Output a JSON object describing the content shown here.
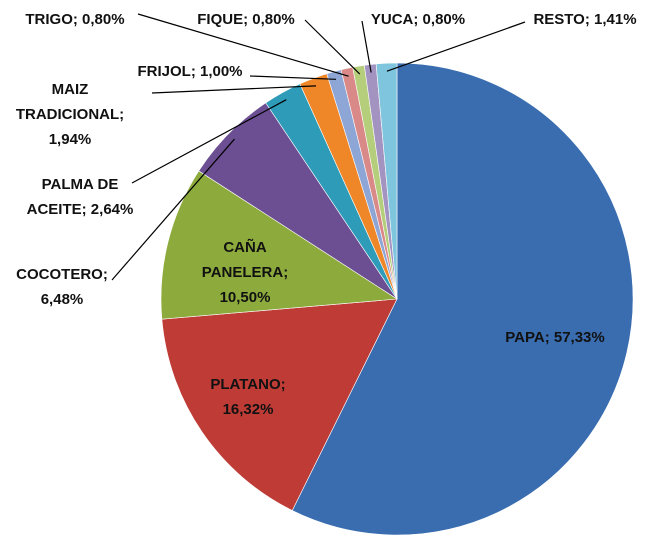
{
  "chart_data": {
    "type": "pie",
    "labels": [
      [
        "PAPA; 57,33%"
      ],
      [
        "PLATANO;",
        "16,32%"
      ],
      [
        "CAÑA",
        "PANELERA;",
        "10,50%"
      ],
      [
        "COCOTERO;",
        "6,48%"
      ],
      [
        "PALMA DE",
        "ACEITE; 2,64%"
      ],
      [
        "MAIZ",
        "TRADICIONAL;",
        "1,94%"
      ],
      [
        "FRIJOL; 1,00%"
      ],
      [
        "TRIGO; 0,80%"
      ],
      [
        "FIQUE; 0,80%"
      ],
      [
        "YUCA; 0,80%"
      ],
      [
        "RESTO; 1,41%"
      ]
    ],
    "values": [
      57.33,
      16.32,
      10.5,
      6.48,
      2.64,
      1.94,
      1.0,
      0.8,
      0.8,
      0.8,
      1.41
    ],
    "colors": [
      "#3a6db0",
      "#be3b36",
      "#8dab3d",
      "#6c4f93",
      "#2e9bb8",
      "#ef8627",
      "#8ea6d6",
      "#d98a88",
      "#b5ce7c",
      "#a293c0",
      "#7fc5dd"
    ]
  }
}
